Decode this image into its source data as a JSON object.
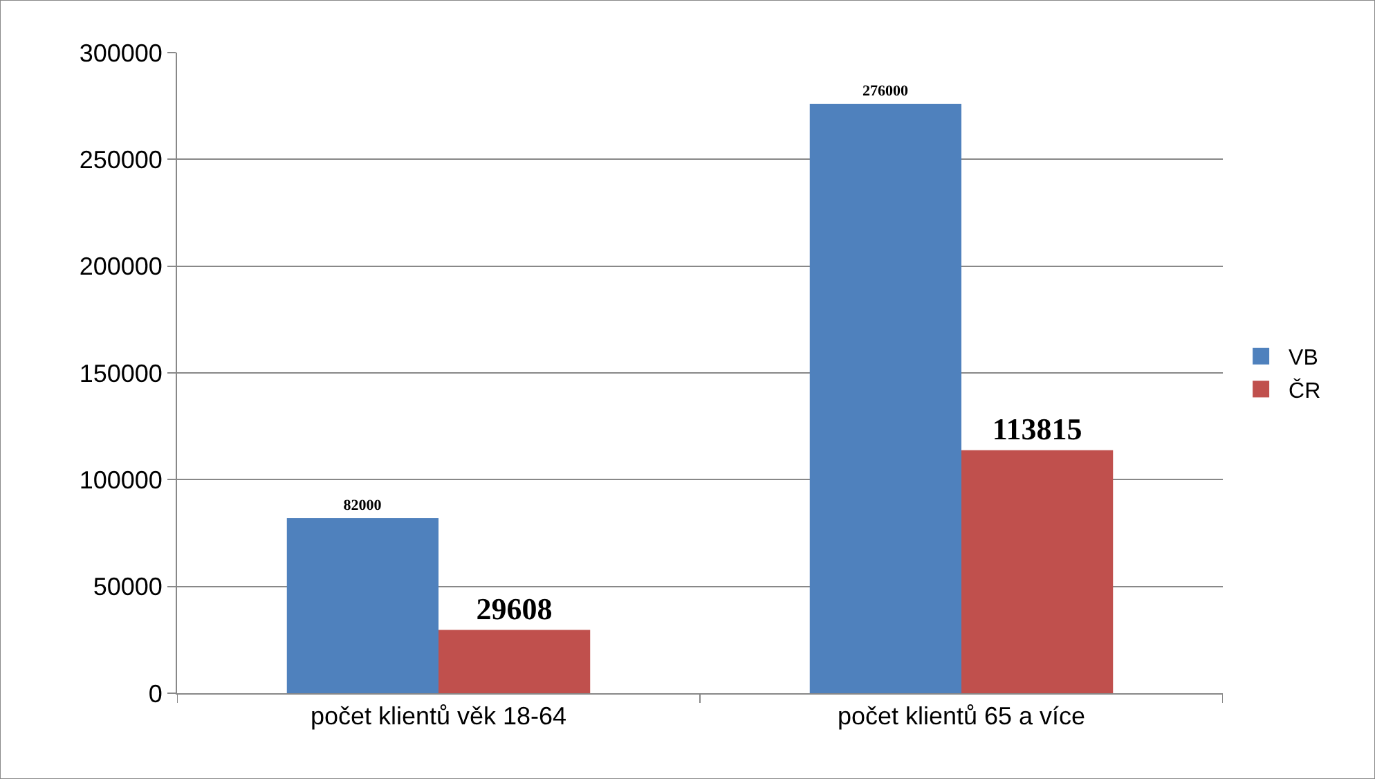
{
  "chart_data": {
    "type": "bar",
    "categories": [
      "počet klientů věk 18-64",
      "počet klientů 65 a více"
    ],
    "series": [
      {
        "name": "VB",
        "color": "#4f81bd",
        "values": [
          82000,
          276000
        ]
      },
      {
        "name": "ČR",
        "color": "#c0504d",
        "values": [
          29608,
          113815
        ]
      }
    ],
    "ylim": [
      0,
      300000
    ],
    "yticks": [
      0,
      50000,
      100000,
      150000,
      200000,
      250000,
      300000
    ],
    "grid": "y",
    "legend": "right",
    "data_labels": true
  }
}
